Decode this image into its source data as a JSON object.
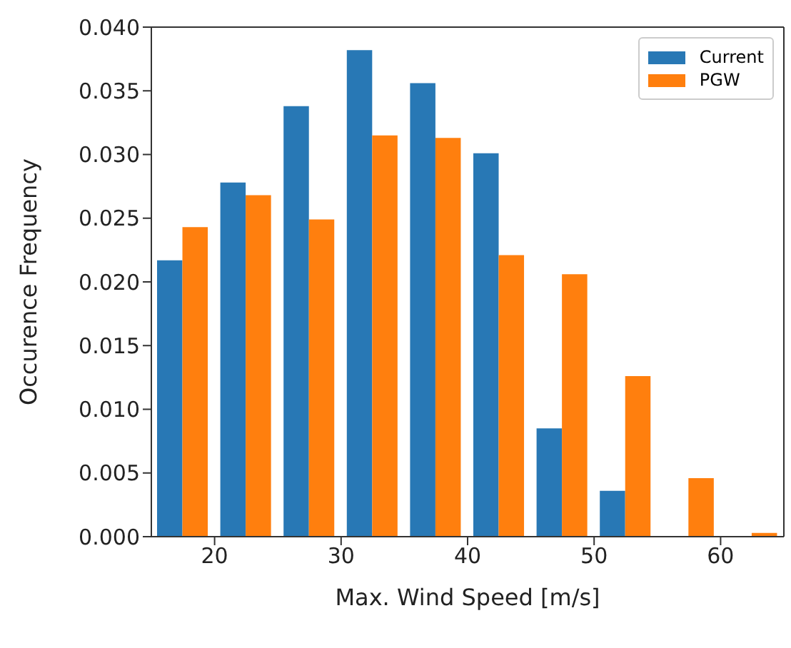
{
  "chart_data": {
    "type": "histogram",
    "xlabel": "Max. Wind Speed [m/s]",
    "ylabel": "Occurence Frequency",
    "bins": [
      15,
      20,
      25,
      30,
      35,
      40,
      45,
      50,
      55,
      60,
      65
    ],
    "series": [
      {
        "name": "Current",
        "color": "#2878b5",
        "values": [
          0.0217,
          0.0278,
          0.0338,
          0.0382,
          0.0356,
          0.0301,
          0.0085,
          0.0036,
          0,
          0
        ]
      },
      {
        "name": "PGW",
        "color": "#ff7f0e",
        "values": [
          0.0243,
          0.0268,
          0.0249,
          0.0315,
          0.0313,
          0.0221,
          0.0206,
          0.0126,
          0.0046,
          0.0003
        ]
      }
    ],
    "xlim": [
      15,
      65
    ],
    "xticks": [
      20,
      30,
      40,
      50,
      60
    ],
    "ylim": [
      0,
      0.04
    ],
    "yticks": [
      {
        "value": 0,
        "label": "0.000"
      },
      {
        "value": 0.005,
        "label": "0.005"
      },
      {
        "value": 0.01,
        "label": "0.010"
      },
      {
        "value": 0.015,
        "label": "0.015"
      },
      {
        "value": 0.02,
        "label": "0.020"
      },
      {
        "value": 0.025,
        "label": "0.025"
      },
      {
        "value": 0.03,
        "label": "0.030"
      },
      {
        "value": 0.035,
        "label": "0.035"
      },
      {
        "value": 0.04,
        "label": "0.040"
      }
    ],
    "legend": "top right"
  }
}
